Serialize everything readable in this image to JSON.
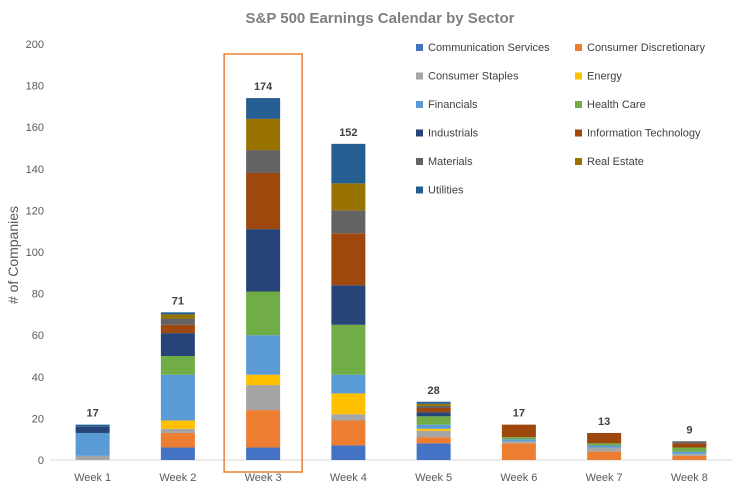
{
  "chart_data": {
    "type": "bar",
    "stacked": true,
    "title": "S&P 500 Earnings Calendar by Sector",
    "xlabel": "",
    "ylabel": "# of Companies",
    "ylim": [
      0,
      200
    ],
    "yticks": [
      0,
      20,
      40,
      60,
      80,
      100,
      120,
      140,
      160,
      180,
      200
    ],
    "grid": false,
    "legend_position": "top-right",
    "highlight_category": "Week 3",
    "highlight_color": "#ed7d31",
    "categories": [
      "Week 1",
      "Week 2",
      "Week 3",
      "Week 4",
      "Week 5",
      "Week 6",
      "Week 7",
      "Week 8"
    ],
    "totals": [
      17,
      71,
      174,
      152,
      28,
      17,
      13,
      9
    ],
    "series": [
      {
        "name": "Communication Services",
        "color": "#4472c4",
        "values": [
          0,
          6,
          6,
          7,
          8,
          0,
          0,
          0
        ]
      },
      {
        "name": "Consumer Discretionary",
        "color": "#ed7d31",
        "values": [
          0,
          7,
          18,
          12,
          3,
          8,
          4,
          2
        ]
      },
      {
        "name": "Consumer Staples",
        "color": "#a5a5a5",
        "values": [
          2,
          2,
          12,
          3,
          3,
          1,
          2,
          1
        ]
      },
      {
        "name": "Energy",
        "color": "#ffc000",
        "values": [
          0,
          4,
          5,
          10,
          1,
          0,
          0,
          0
        ]
      },
      {
        "name": "Financials",
        "color": "#5b9bd5",
        "values": [
          11,
          22,
          19,
          9,
          2,
          1,
          1,
          1
        ]
      },
      {
        "name": "Health Care",
        "color": "#70ad47",
        "values": [
          0,
          9,
          21,
          24,
          4,
          1,
          1,
          2
        ]
      },
      {
        "name": "Industrials",
        "color": "#264478",
        "values": [
          3,
          11,
          30,
          19,
          2,
          0,
          0,
          0
        ]
      },
      {
        "name": "Information Technology",
        "color": "#9e480e",
        "values": [
          0,
          4,
          27,
          25,
          2,
          6,
          5,
          2
        ]
      },
      {
        "name": "Materials",
        "color": "#636363",
        "values": [
          0,
          3,
          11,
          11,
          1,
          0,
          0,
          1
        ]
      },
      {
        "name": "Real Estate",
        "color": "#997300",
        "values": [
          0,
          2,
          15,
          13,
          1,
          0,
          0,
          0
        ]
      },
      {
        "name": "Utilities",
        "color": "#255e91",
        "values": [
          1,
          1,
          10,
          19,
          1,
          0,
          0,
          0
        ]
      }
    ]
  }
}
